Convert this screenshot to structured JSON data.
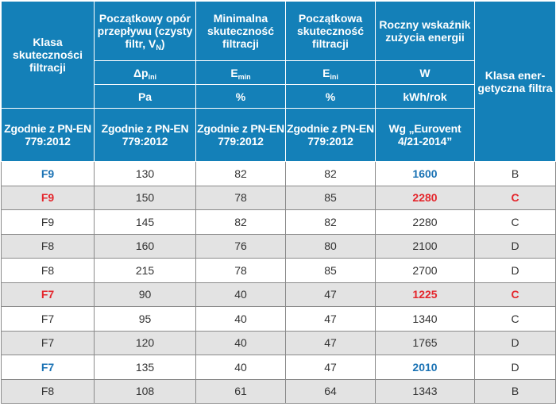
{
  "header": {
    "col1": {
      "title": "Klasa skuteczności filtracji",
      "standard": "Zgodnie z PN-EN 779:2012"
    },
    "col2": {
      "title": "Początkowy opór przepływu (czysty filtr, V",
      "title_sub": "N",
      "title_end": ")",
      "symbol": "Δp",
      "symbol_sub": "ini",
      "unit": "Pa",
      "standard": "Zgodnie z PN-EN 779:2012"
    },
    "col3": {
      "title": "Minimalna skuteczność filtracji",
      "symbol": "E",
      "symbol_sub": "min",
      "unit": "%",
      "standard": "Zgodnie z PN-EN 779:2012"
    },
    "col4": {
      "title": "Początkowa skuteczność filtracji",
      "symbol": "E",
      "symbol_sub": "ini",
      "unit": "%",
      "standard": "Zgodnie z PN-EN 779:2012"
    },
    "col5": {
      "title": "Roczny wskaźnik zużycia energii",
      "symbol": "W",
      "unit": "kWh/rok",
      "standard": "Wg „Eurovent 4/21-2014”"
    },
    "col6": {
      "title": "Klasa ener-getyczna filtra"
    }
  },
  "rows": [
    {
      "klasa": "F9",
      "dp": "130",
      "emin": "82",
      "eini": "82",
      "w": "1600",
      "energy": "B",
      "highlight": "blue"
    },
    {
      "klasa": "F9",
      "dp": "150",
      "emin": "78",
      "eini": "85",
      "w": "2280",
      "energy": "C",
      "highlight": "red"
    },
    {
      "klasa": "F9",
      "dp": "145",
      "emin": "82",
      "eini": "82",
      "w": "2280",
      "energy": "C",
      "highlight": ""
    },
    {
      "klasa": "F8",
      "dp": "160",
      "emin": "76",
      "eini": "80",
      "w": "2100",
      "energy": "D",
      "highlight": ""
    },
    {
      "klasa": "F8",
      "dp": "215",
      "emin": "78",
      "eini": "85",
      "w": "2700",
      "energy": "D",
      "highlight": ""
    },
    {
      "klasa": "F7",
      "dp": "90",
      "emin": "40",
      "eini": "47",
      "w": "1225",
      "energy": "C",
      "highlight": "red"
    },
    {
      "klasa": "F7",
      "dp": "95",
      "emin": "40",
      "eini": "47",
      "w": "1340",
      "energy": "C",
      "highlight": ""
    },
    {
      "klasa": "F7",
      "dp": "120",
      "emin": "40",
      "eini": "47",
      "w": "1765",
      "energy": "D",
      "highlight": ""
    },
    {
      "klasa": "F7",
      "dp": "135",
      "emin": "40",
      "eini": "47",
      "w": "2010",
      "energy": "D",
      "highlight": "blue"
    },
    {
      "klasa": "F8",
      "dp": "108",
      "emin": "61",
      "eini": "64",
      "w": "1343",
      "energy": "B",
      "highlight": ""
    }
  ],
  "colors": {
    "header_bg": "#1480b8",
    "row_alt": "#e3e3e3",
    "blue_highlight": "#1a72b4",
    "red_highlight": "#e4262c"
  }
}
